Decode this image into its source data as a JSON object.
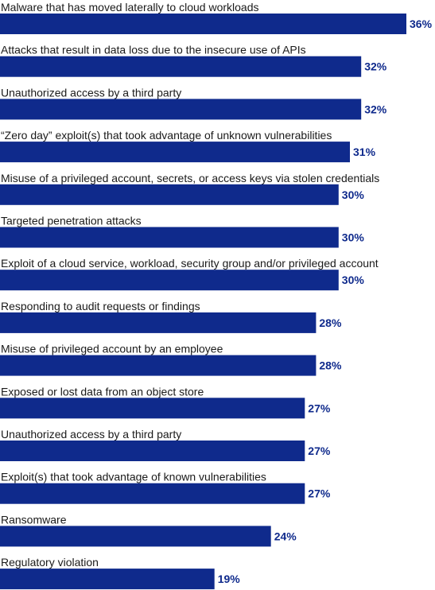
{
  "chart_data": {
    "type": "bar",
    "orientation": "horizontal",
    "categories": [
      "Malware that has moved laterally to cloud workloads",
      "Attacks that result in data loss due to the insecure use of APIs",
      "Unauthorized access by a third party",
      "“Zero day” exploit(s) that took advantage of unknown vulnerabilities",
      "Misuse of a privileged account, secrets, or access keys via stolen credentials",
      "Targeted penetration attacks",
      "Exploit of a cloud service, workload, security group and/or privileged account",
      "Responding to audit requests or findings",
      "Misuse of privileged account by an employee",
      "Exposed or lost data from an object store",
      "Unauthorized access by a third party",
      "Exploit(s) that took advantage of known vulnerabilities",
      "Ransomware",
      "Regulatory violation"
    ],
    "values": [
      36,
      32,
      32,
      31,
      30,
      30,
      30,
      28,
      28,
      27,
      27,
      27,
      24,
      19
    ],
    "value_labels": [
      "36%",
      "32%",
      "32%",
      "31%",
      "30%",
      "30%",
      "30%",
      "28%",
      "28%",
      "27%",
      "27%",
      "27%",
      "24%",
      "19%"
    ],
    "unit": "%",
    "xlim": [
      0,
      36
    ],
    "grid": false,
    "colors": {
      "bar": "#0f2a8c",
      "value_text": "#0f2a8c",
      "label_text": "#1a1a1a"
    }
  }
}
